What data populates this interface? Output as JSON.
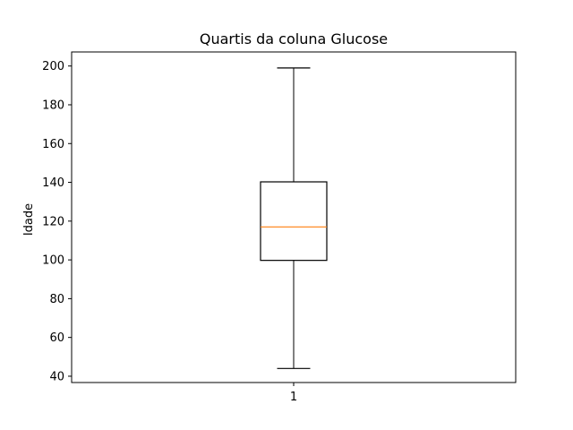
{
  "chart_data": {
    "type": "boxplot",
    "title": "Quartis da coluna Glucose",
    "xlabel": "",
    "ylabel": "Idade",
    "categories": [
      "1"
    ],
    "ylim": [
      36.75,
      207.25
    ],
    "yticks": [
      40,
      60,
      80,
      100,
      120,
      140,
      160,
      180,
      200
    ],
    "boxes": [
      {
        "category": "1",
        "whisker_low": 44,
        "q1": 99.75,
        "median": 117,
        "q3": 140.25,
        "whisker_high": 199
      }
    ],
    "grid": false,
    "colors": {
      "box": "#000000",
      "whisker": "#000000",
      "median": "#ff7f0e"
    }
  }
}
